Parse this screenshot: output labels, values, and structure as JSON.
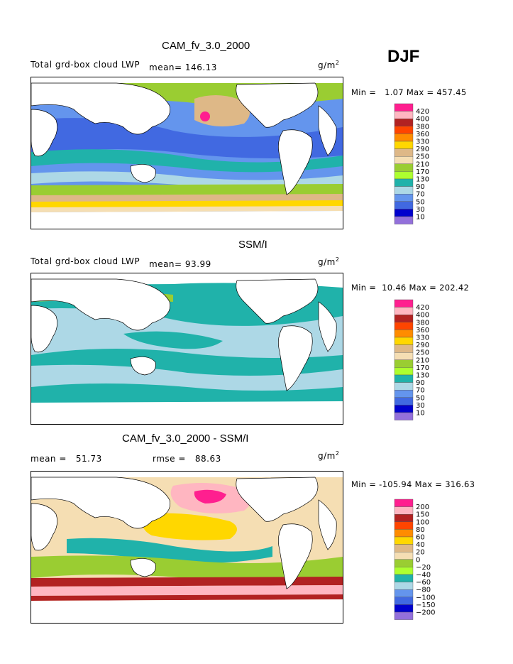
{
  "season": "DJF",
  "chart_data": [
    {
      "type": "heatmap",
      "title": "CAM_fv_3.0_2000",
      "variable": "Total grd-box cloud LWP",
      "mean_label": "mean=",
      "mean": "146.13",
      "units": "g/m",
      "units_exp": "2",
      "min_label": "Min =",
      "min": "1.07",
      "max_label": "Max =",
      "max": "457.45",
      "levels": [
        "420",
        "400",
        "380",
        "360",
        "330",
        "290",
        "250",
        "210",
        "170",
        "130",
        "90",
        "70",
        "50",
        "30",
        "10"
      ],
      "colors": [
        "#ff1f8f",
        "#ffb6c1",
        "#b22222",
        "#ff4500",
        "#ff8c00",
        "#ffd700",
        "#deb887",
        "#f5deb3",
        "#9acd32",
        "#adff2f",
        "#20b2aa",
        "#add8e6",
        "#6495ed",
        "#4169e1",
        "#0000cd",
        "#9370db"
      ]
    },
    {
      "type": "heatmap",
      "title": "SSM/I",
      "variable": "Total grd-box cloud LWP",
      "mean_label": "mean=",
      "mean": "93.99",
      "units": "g/m",
      "units_exp": "2",
      "min_label": "Min =",
      "min": "10.46",
      "max_label": "Max =",
      "max": "202.42",
      "levels": [
        "420",
        "400",
        "380",
        "360",
        "330",
        "290",
        "250",
        "210",
        "170",
        "130",
        "90",
        "70",
        "50",
        "30",
        "10"
      ],
      "colors": [
        "#ff1f8f",
        "#ffb6c1",
        "#b22222",
        "#ff4500",
        "#ff8c00",
        "#ffd700",
        "#deb887",
        "#f5deb3",
        "#9acd32",
        "#adff2f",
        "#20b2aa",
        "#add8e6",
        "#6495ed",
        "#4169e1",
        "#0000cd",
        "#9370db"
      ]
    },
    {
      "type": "heatmap",
      "title": "CAM_fv_3.0_2000 - SSM/I",
      "mean_label": "mean =",
      "mean": "51.73",
      "rmse_label": "rmse =",
      "rmse": "88.63",
      "units": "g/m",
      "units_exp": "2",
      "min_label": "Min =",
      "min": "-105.94",
      "max_label": "Max =",
      "max": "316.63",
      "levels": [
        "200",
        "150",
        "100",
        "80",
        "60",
        "40",
        "20",
        "0",
        "-20",
        "-40",
        "-60",
        "-80",
        "-100",
        "-150",
        "-200"
      ],
      "colors": [
        "#ff1f8f",
        "#ffb6c1",
        "#b22222",
        "#ff4500",
        "#ff8c00",
        "#ffd700",
        "#deb887",
        "#f5deb3",
        "#9acd32",
        "#adff2f",
        "#20b2aa",
        "#add8e6",
        "#6495ed",
        "#4169e1",
        "#0000cd",
        "#9370db"
      ]
    }
  ]
}
